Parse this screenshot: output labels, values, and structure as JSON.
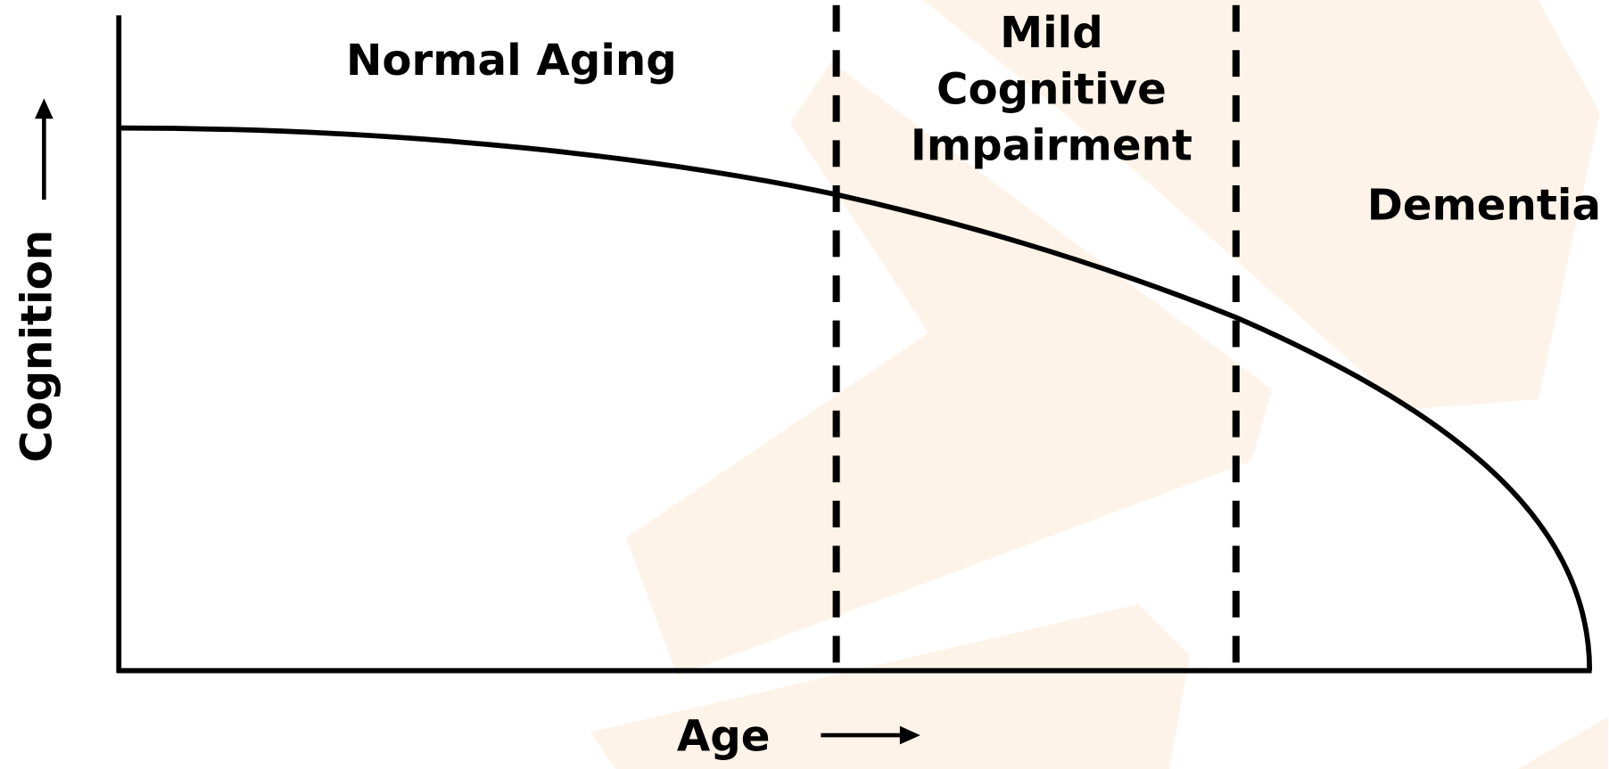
{
  "axes": {
    "y_label": "Cognition",
    "x_label": "Age"
  },
  "regions": [
    {
      "lines": [
        "Normal Aging"
      ]
    },
    {
      "lines": [
        "Mild",
        "Cognitive",
        "Impairment"
      ]
    },
    {
      "lines": [
        "Dementia"
      ]
    }
  ]
}
